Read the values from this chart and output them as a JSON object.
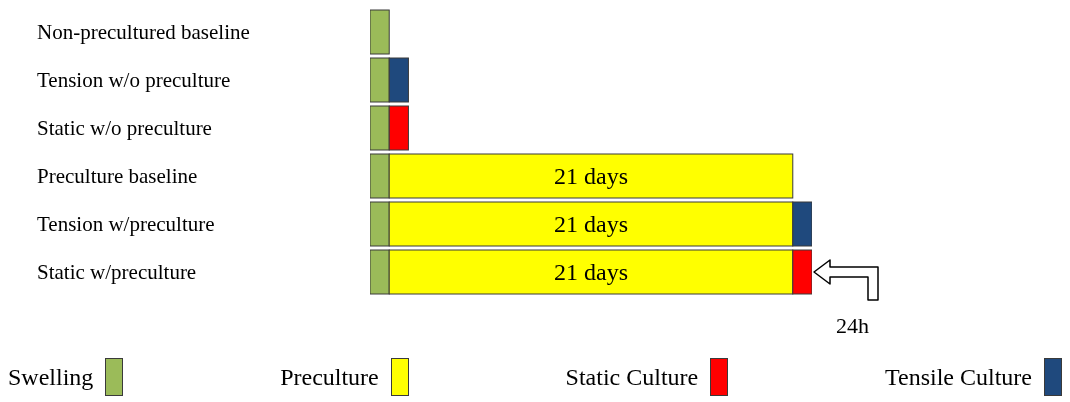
{
  "chart_data": {
    "type": "bar",
    "orientation": "horizontal",
    "stacked": true,
    "legend": "bottom",
    "categories": [
      "Non-precultured baseline",
      "Tension w/o preculture",
      "Static w/o preculture",
      "Preculture baseline",
      "Tension w/preculture",
      "Static w/preculture"
    ],
    "series": [
      {
        "name": "Swelling",
        "color": "#9bbb59",
        "values": [
          1,
          1,
          1,
          1,
          1,
          1
        ]
      },
      {
        "name": "Preculture",
        "color": "#ffff00",
        "values": [
          null,
          null,
          null,
          21,
          21,
          21
        ],
        "value_labels": [
          null,
          null,
          null,
          "21 days",
          "21 days",
          "21 days"
        ]
      },
      {
        "name": "Static Culture",
        "color": "#ff0000",
        "values": [
          null,
          null,
          1,
          null,
          null,
          1
        ]
      },
      {
        "name": "Tensile Culture",
        "color": "#1f497d",
        "values": [
          null,
          1,
          null,
          null,
          1,
          null
        ]
      }
    ],
    "annotations": [
      "24h"
    ]
  }
}
